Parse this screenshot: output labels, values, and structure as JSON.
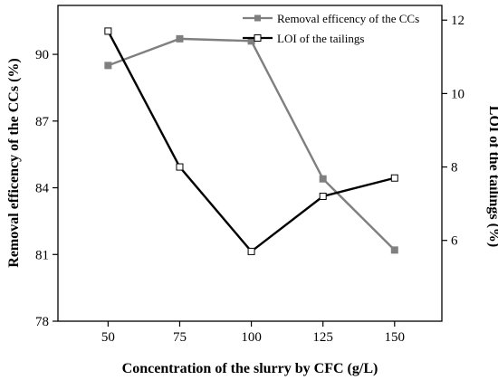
{
  "chart_data": {
    "type": "line",
    "x": [
      50,
      75,
      100,
      125,
      150
    ],
    "x_ticks": [
      50,
      75,
      100,
      125,
      150
    ],
    "xlabel": "Concentration of the slurry by CFC (g/L)",
    "series": [
      {
        "name": "Removal efficency of the CCs",
        "axis": "left",
        "values": [
          89.5,
          90.7,
          90.6,
          84.4,
          81.2
        ],
        "color": "#7f7f7f",
        "marker": "filled-square"
      },
      {
        "name": "LOI of the tailings",
        "axis": "right",
        "values": [
          11.7,
          8.0,
          5.7,
          7.2,
          7.7
        ],
        "color": "#000000",
        "marker": "open-square"
      }
    ],
    "y_left": {
      "label": "Removal efficency of the CCs (%)",
      "ylim": [
        78,
        92.2
      ],
      "ticks": [
        78,
        81,
        84,
        87,
        90
      ]
    },
    "y_right": {
      "label": "LOI of the tailings (%)",
      "ylim": [
        3.8,
        12.4
      ],
      "ticks": [
        6,
        8,
        10,
        12
      ]
    },
    "legend_position": "top-right",
    "grid": false
  }
}
